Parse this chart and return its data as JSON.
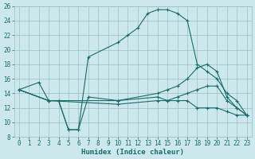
{
  "title": "",
  "xlabel": "Humidex (Indice chaleur)",
  "bg_color": "#cde8ec",
  "grid_color": "#9bbfc4",
  "line_color": "#1a6b6b",
  "xlim": [
    -0.5,
    23.5
  ],
  "ylim": [
    8,
    26
  ],
  "xticks": [
    0,
    1,
    2,
    3,
    4,
    5,
    6,
    7,
    8,
    9,
    10,
    11,
    12,
    13,
    14,
    15,
    16,
    17,
    18,
    19,
    20,
    21,
    22,
    23
  ],
  "yticks": [
    8,
    10,
    12,
    14,
    16,
    18,
    20,
    22,
    24,
    26
  ],
  "lines": [
    {
      "x": [
        0,
        2,
        3,
        4,
        5,
        6,
        7,
        10,
        14,
        15,
        16,
        17,
        18,
        19,
        20,
        21,
        22,
        23
      ],
      "y": [
        14.5,
        15.5,
        13,
        13,
        9,
        9,
        13.5,
        13,
        13.5,
        13,
        13,
        13,
        12,
        12,
        12,
        11.5,
        11,
        11
      ]
    },
    {
      "x": [
        0,
        3,
        4,
        5,
        6,
        7,
        10,
        11,
        12,
        13,
        14,
        15,
        16,
        17,
        18,
        19,
        20,
        21,
        22,
        23
      ],
      "y": [
        14.5,
        13,
        13,
        9,
        9,
        19,
        21,
        22,
        23,
        25,
        25.5,
        25.5,
        25,
        24,
        18,
        17,
        16,
        14,
        13,
        11
      ]
    },
    {
      "x": [
        0,
        3,
        10,
        14,
        15,
        16,
        17,
        18,
        19,
        20,
        21,
        22,
        23
      ],
      "y": [
        14.5,
        13,
        13,
        14,
        14.5,
        15,
        16,
        17.5,
        18,
        17,
        13.5,
        12,
        11
      ]
    },
    {
      "x": [
        0,
        3,
        10,
        14,
        15,
        16,
        17,
        18,
        19,
        20,
        21,
        22,
        23
      ],
      "y": [
        14.5,
        13,
        12.5,
        13,
        13,
        13.5,
        14,
        14.5,
        15,
        15,
        13,
        12,
        11
      ]
    }
  ]
}
